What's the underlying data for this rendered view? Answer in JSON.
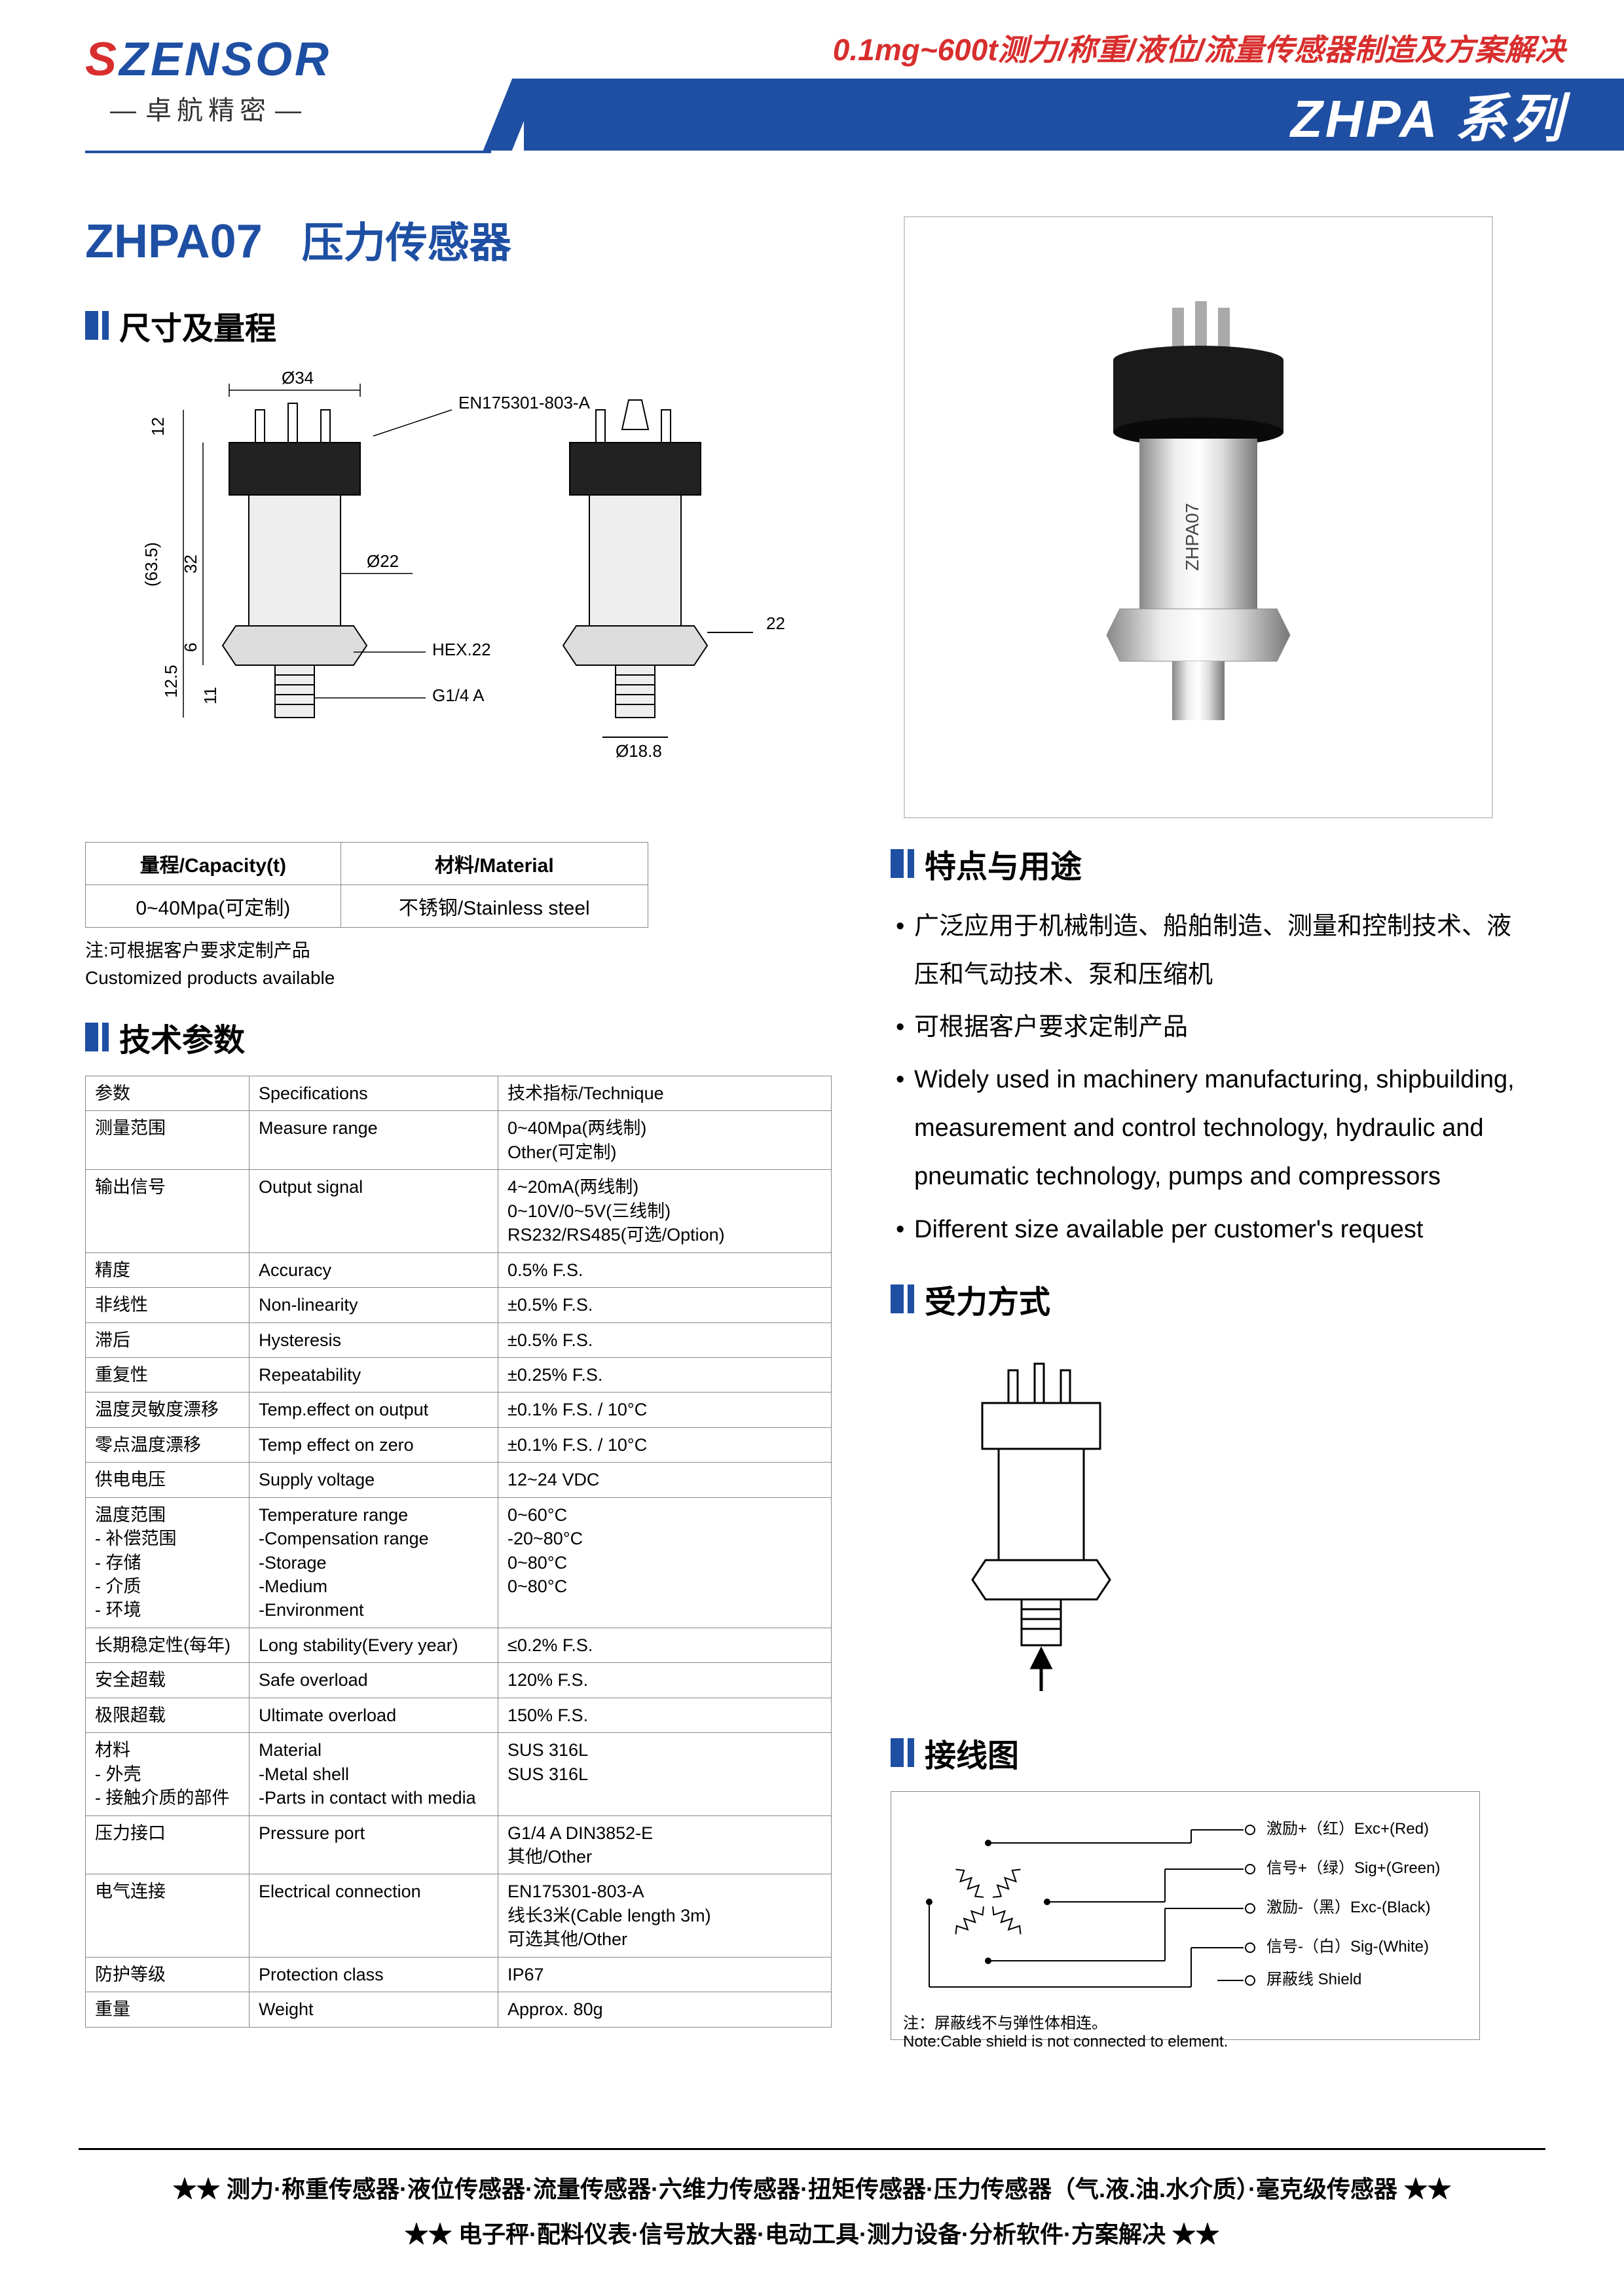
{
  "header": {
    "logo_s": "S",
    "logo_rest": "ZENSOR",
    "logo_sub": "卓航精密",
    "top_red": "0.1mg~600t测力/称重/液位/流量传感器制造及方案解决",
    "series": "ZHPA 系列"
  },
  "title": {
    "code": "ZHPA07",
    "name": "压力传感器"
  },
  "sections": {
    "dim": "尺寸及量程",
    "spec": "技术参数",
    "feat": "特点与用途",
    "force": "受力方式",
    "wiring": "接线图"
  },
  "dim_labels": {
    "d34": "Ø34",
    "en": "EN175301-803-A",
    "h12": "12",
    "h635": "(63.5)",
    "h32": "32",
    "h125": "12.5",
    "h6": "6",
    "h11": "11",
    "d22": "Ø22",
    "hex22": "HEX.22",
    "g14": "G1/4 A",
    "r22": "22",
    "d188": "Ø18.8"
  },
  "dim_table": {
    "h1": "量程/Capacity(t)",
    "h2": "材料/Material",
    "c1": "0~40Mpa(可定制)",
    "c2": "不锈钢/Stainless steel"
  },
  "dim_note": "注:可根据客户要求定制产品\nCustomized products available",
  "spec_rows": [
    [
      "参数",
      "Specifications",
      "技术指标/Technique"
    ],
    [
      "测量范围",
      "Measure range",
      "0~40Mpa(两线制)\nOther(可定制)"
    ],
    [
      "输出信号",
      "Output signal",
      "4~20mA(两线制)\n0~10V/0~5V(三线制)\nRS232/RS485(可选/Option)"
    ],
    [
      "精度",
      "Accuracy",
      "0.5% F.S."
    ],
    [
      "非线性",
      "Non-linearity",
      "±0.5% F.S."
    ],
    [
      "滞后",
      "Hysteresis",
      "±0.5% F.S."
    ],
    [
      "重复性",
      "Repeatability",
      "±0.25% F.S."
    ],
    [
      "温度灵敏度漂移",
      "Temp.effect on output",
      "±0.1% F.S. / 10°C"
    ],
    [
      "零点温度漂移",
      "Temp effect on zero",
      "±0.1% F.S. / 10°C"
    ],
    [
      "供电电压",
      "Supply voltage",
      "12~24 VDC"
    ],
    [
      "温度范围\n - 补偿范围\n - 存储\n - 介质\n - 环境",
      "Temperature range\n-Compensation range\n-Storage\n-Medium\n-Environment",
      "0~60°C\n-20~80°C\n0~80°C\n0~80°C"
    ],
    [
      "长期稳定性(每年)",
      "Long stability(Every year)",
      "≤0.2% F.S."
    ],
    [
      "安全超载",
      "Safe overload",
      "120% F.S."
    ],
    [
      "极限超载",
      "Ultimate overload",
      "150% F.S."
    ],
    [
      "材料\n - 外壳\n - 接触介质的部件",
      "Material\n-Metal shell\n-Parts in contact with media",
      "SUS 316L\nSUS 316L"
    ],
    [
      "压力接口",
      "Pressure port",
      "G1/4 A DIN3852-E\n其他/Other"
    ],
    [
      "电气连接",
      "Electrical connection",
      "EN175301-803-A\n线长3米(Cable length 3m)\n可选其他/Other"
    ],
    [
      "防护等级",
      "Protection class",
      "IP67"
    ],
    [
      "重量",
      "Weight",
      "Approx. 80g"
    ]
  ],
  "features": [
    "广泛应用于机械制造、船舶制造、测量和控制技术、液压和气动技术、泵和压缩机",
    "可根据客户要求定制产品",
    "Widely used in machinery manufacturing, shipbuilding, measurement and control technology, hydraulic and pneumatic technology, pumps and compressors",
    "Different size available per customer's request"
  ],
  "wiring": {
    "exc_p": "激励+（红）Exc+(Red)",
    "sig_p": "信号+（绿）Sig+(Green)",
    "exc_n": "激励-（黑）Exc-(Black)",
    "sig_n": "信号-（白）Sig-(White)",
    "shield": "屏蔽线 Shield",
    "note": "注：屏蔽线不与弹性体相连。\nNote:Cable shield is not connected to element."
  },
  "product_label": "ZHPA07",
  "footer": {
    "l1": "★★ 测力·称重传感器·液位传感器·流量传感器·六维力传感器·扭矩传感器·压力传感器（气.液.油.水介质）·毫克级传感器 ★★",
    "l2": "★★ 电子秤·配料仪表·信号放大器·电动工具·测力设备·分析软件·方案解决 ★★"
  },
  "colors": {
    "blue": "#1e4fa3",
    "red": "#d82e2e"
  }
}
